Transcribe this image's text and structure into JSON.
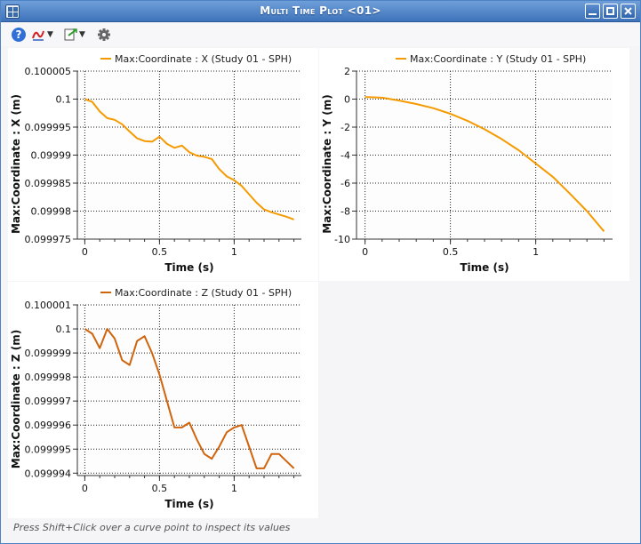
{
  "window": {
    "title": "Multi Time Plot <01>"
  },
  "toolbar": {
    "help_icon": "help-icon",
    "curve_icon": "curve-style-icon",
    "export_icon": "export-icon",
    "settings_icon": "gear-icon"
  },
  "status": {
    "text": "Press Shift+Click over a curve point to inspect its values"
  },
  "colors": {
    "series_x": "#f59a00",
    "series_y": "#f59a00",
    "series_z": "#d0640c",
    "background": "#f5f5f7"
  },
  "chart_data": [
    {
      "type": "line",
      "title": "Max:Coordinate : X (Study 01 - SPH)",
      "xlabel": "Time (s)",
      "ylabel": "Max:Coordinate : X (m)",
      "xlim": [
        -0.05,
        1.45
      ],
      "ylim": [
        0.099975,
        0.100005
      ],
      "xticks": [
        0,
        0.5,
        1
      ],
      "xtick_labels": [
        "0",
        "0.5",
        "1"
      ],
      "yticks": [
        0.099975,
        0.09998,
        0.099985,
        0.09999,
        0.099995,
        0.1,
        0.100005
      ],
      "ytick_labels": [
        "0.099975",
        "0.09998",
        "0.099985",
        "0.09999",
        "0.099995",
        "0.1",
        "0.100005"
      ],
      "grid": true,
      "legend": "top-center",
      "series": [
        {
          "name": "Max:Coordinate : X (Study 01 - SPH)",
          "x": [
            0,
            0.05,
            0.1,
            0.15,
            0.2,
            0.25,
            0.3,
            0.35,
            0.4,
            0.45,
            0.5,
            0.55,
            0.6,
            0.65,
            0.7,
            0.75,
            0.8,
            0.85,
            0.9,
            0.95,
            1.0,
            1.05,
            1.1,
            1.15,
            1.2,
            1.25,
            1.3,
            1.35,
            1.4
          ],
          "y": [
            0.1,
            0.0999995,
            0.0999978,
            0.0999966,
            0.0999963,
            0.0999955,
            0.0999942,
            0.099993,
            0.0999925,
            0.0999924,
            0.0999933,
            0.099992,
            0.0999913,
            0.0999917,
            0.0999905,
            0.0999899,
            0.0999897,
            0.0999893,
            0.0999875,
            0.0999862,
            0.0999855,
            0.0999845,
            0.099983,
            0.0999815,
            0.0999803,
            0.0999798,
            0.0999794,
            0.099979,
            0.0999785
          ]
        }
      ]
    },
    {
      "type": "line",
      "title": "Max:Coordinate : Y (Study 01 - SPH)",
      "xlabel": "Time (s)",
      "ylabel": "Max:Coordinate : Y (m)",
      "xlim": [
        -0.05,
        1.45
      ],
      "ylim": [
        -10,
        2
      ],
      "xticks": [
        0,
        0.5,
        1
      ],
      "xtick_labels": [
        "0",
        "0.5",
        "1"
      ],
      "yticks": [
        -10,
        -8,
        -6,
        -4,
        -2,
        0,
        2
      ],
      "ytick_labels": [
        "-10",
        "-8",
        "-6",
        "-4",
        "-2",
        "0",
        "2"
      ],
      "grid": true,
      "legend": "top-center",
      "series": [
        {
          "name": "Max:Coordinate : Y (Study 01 - SPH)",
          "x": [
            0,
            0.1,
            0.2,
            0.3,
            0.4,
            0.5,
            0.6,
            0.7,
            0.8,
            0.9,
            1.0,
            1.1,
            1.2,
            1.3,
            1.4
          ],
          "y": [
            0.15,
            0.1,
            -0.1,
            -0.35,
            -0.65,
            -1.05,
            -1.55,
            -2.15,
            -2.85,
            -3.65,
            -4.6,
            -5.55,
            -6.75,
            -8.0,
            -9.45
          ]
        }
      ]
    },
    {
      "type": "line",
      "title": "Max:Coordinate : Z (Study 01 - SPH)",
      "xlabel": "Time (s)",
      "ylabel": "Max:Coordinate : Z (m)",
      "xlim": [
        -0.05,
        1.45
      ],
      "ylim": [
        0.0999939,
        0.100001
      ],
      "xticks": [
        0,
        0.5,
        1
      ],
      "xtick_labels": [
        "0",
        "0.5",
        "1"
      ],
      "yticks": [
        0.099994,
        0.099995,
        0.099996,
        0.099997,
        0.099998,
        0.099999,
        0.1,
        0.100001
      ],
      "ytick_labels": [
        "0.099994",
        "0.099995",
        "0.099996",
        "0.099997",
        "0.099998",
        "0.099999",
        "0.1",
        "0.100001"
      ],
      "grid": true,
      "legend": "top-center",
      "series": [
        {
          "name": "Max:Coordinate : Z (Study 01 - SPH)",
          "x": [
            0,
            0.05,
            0.1,
            0.15,
            0.2,
            0.25,
            0.3,
            0.35,
            0.4,
            0.45,
            0.5,
            0.55,
            0.6,
            0.65,
            0.7,
            0.75,
            0.8,
            0.85,
            0.9,
            0.95,
            1.0,
            1.05,
            1.1,
            1.15,
            1.2,
            1.25,
            1.3,
            1.35,
            1.4
          ],
          "y": [
            0.1,
            0.0999998,
            0.0999992,
            0.1,
            0.0999996,
            0.0999987,
            0.0999985,
            0.0999995,
            0.0999997,
            0.099999,
            0.0999981,
            0.099997,
            0.0999959,
            0.0999959,
            0.0999961,
            0.0999954,
            0.0999948,
            0.0999946,
            0.0999951,
            0.0999957,
            0.0999959,
            0.099996,
            0.0999951,
            0.0999942,
            0.0999942,
            0.0999948,
            0.0999948,
            0.0999945,
            0.0999942
          ]
        }
      ]
    }
  ]
}
